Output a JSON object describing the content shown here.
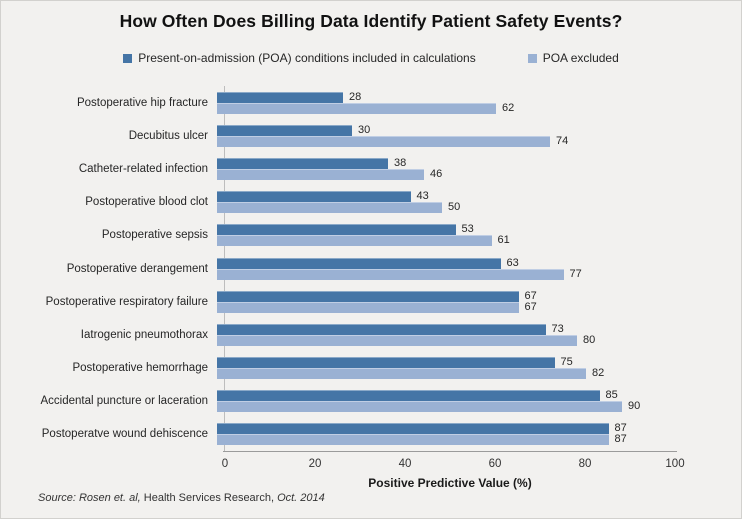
{
  "title": "How Often Does Billing Data Identify Patient Safety Events?",
  "legend": [
    {
      "label": "Present-on-admission (POA) conditions included in calculations",
      "color": "#4575A6"
    },
    {
      "label": "POA excluded",
      "color": "#9AB1D3"
    }
  ],
  "chart_data": {
    "type": "bar",
    "orientation": "horizontal",
    "title": "How Often Does Billing Data Identify Patient Safety Events?",
    "categories": [
      "Postoperative hip fracture",
      "Decubitus ulcer",
      "Catheter-related infection",
      "Postoperative blood clot",
      "Postoperative sepsis",
      "Postoperative derangement",
      "Postoperative respiratory failure",
      "Iatrogenic pneumothorax",
      "Postoperative hemorrhage",
      "Accidental puncture or laceration",
      "Postoperatve wound dehiscence"
    ],
    "series": [
      {
        "name": "Present-on-admission (POA) conditions included in calculations",
        "color": "#4575A6",
        "values": [
          28,
          30,
          38,
          43,
          53,
          63,
          67,
          73,
          75,
          85,
          87
        ]
      },
      {
        "name": "POA excluded",
        "color": "#9AB1D3",
        "values": [
          62,
          74,
          46,
          50,
          61,
          77,
          67,
          80,
          82,
          90,
          87
        ]
      }
    ],
    "xlabel": "Positive Predictive Value (%)",
    "xlim": [
      0,
      100
    ],
    "xticks": [
      0,
      20,
      40,
      60,
      80,
      100
    ],
    "value_labels": true,
    "grid": false,
    "legend_position": "top"
  },
  "source": {
    "parts": [
      {
        "text": "Source: Rosen et. al,",
        "italic": true
      },
      {
        "text": " Health Services Research,",
        "italic": false
      },
      {
        "text": " Oct. 2014",
        "italic": true
      }
    ]
  },
  "colors": {
    "background": "#F2F1EF",
    "bar_dark": "#4575A6",
    "bar_light": "#9AB1D3",
    "axis_line": "#9B9B9B",
    "y_axis_line": "#BDBDBD",
    "text": "#262626"
  }
}
